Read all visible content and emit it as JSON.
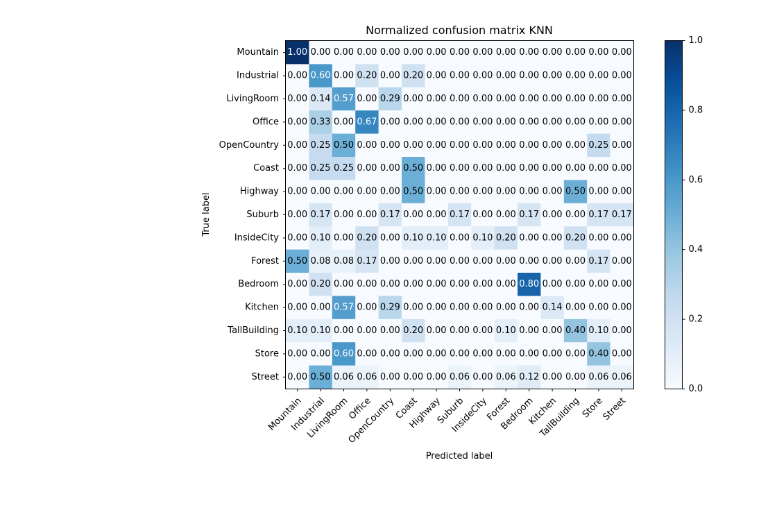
{
  "chart_data": {
    "type": "heatmap",
    "title": "Normalized confusion matrix KNN",
    "xlabel": "Predicted label",
    "ylabel": "True label",
    "x_categories": [
      "Mountain",
      "Industrial",
      "LivingRoom",
      "Office",
      "OpenCountry",
      "Coast",
      "Highway",
      "Suburb",
      "InsideCity",
      "Forest",
      "Bedroom",
      "Kitchen",
      "TallBuilding",
      "Store",
      "Street"
    ],
    "y_categories": [
      "Mountain",
      "Industrial",
      "LivingRoom",
      "Office",
      "OpenCountry",
      "Coast",
      "Highway",
      "Suburb",
      "InsideCity",
      "Forest",
      "Bedroom",
      "Kitchen",
      "TallBuilding",
      "Store",
      "Street"
    ],
    "values": [
      [
        1.0,
        0.0,
        0.0,
        0.0,
        0.0,
        0.0,
        0.0,
        0.0,
        0.0,
        0.0,
        0.0,
        0.0,
        0.0,
        0.0,
        0.0
      ],
      [
        0.0,
        0.6,
        0.0,
        0.2,
        0.0,
        0.2,
        0.0,
        0.0,
        0.0,
        0.0,
        0.0,
        0.0,
        0.0,
        0.0,
        0.0
      ],
      [
        0.0,
        0.14,
        0.57,
        0.0,
        0.29,
        0.0,
        0.0,
        0.0,
        0.0,
        0.0,
        0.0,
        0.0,
        0.0,
        0.0,
        0.0
      ],
      [
        0.0,
        0.33,
        0.0,
        0.67,
        0.0,
        0.0,
        0.0,
        0.0,
        0.0,
        0.0,
        0.0,
        0.0,
        0.0,
        0.0,
        0.0
      ],
      [
        0.0,
        0.25,
        0.5,
        0.0,
        0.0,
        0.0,
        0.0,
        0.0,
        0.0,
        0.0,
        0.0,
        0.0,
        0.0,
        0.25,
        0.0
      ],
      [
        0.0,
        0.25,
        0.25,
        0.0,
        0.0,
        0.5,
        0.0,
        0.0,
        0.0,
        0.0,
        0.0,
        0.0,
        0.0,
        0.0,
        0.0
      ],
      [
        0.0,
        0.0,
        0.0,
        0.0,
        0.0,
        0.5,
        0.0,
        0.0,
        0.0,
        0.0,
        0.0,
        0.0,
        0.5,
        0.0,
        0.0
      ],
      [
        0.0,
        0.17,
        0.0,
        0.0,
        0.17,
        0.0,
        0.0,
        0.17,
        0.0,
        0.0,
        0.17,
        0.0,
        0.0,
        0.17,
        0.17
      ],
      [
        0.0,
        0.1,
        0.0,
        0.2,
        0.0,
        0.1,
        0.1,
        0.0,
        0.1,
        0.2,
        0.0,
        0.0,
        0.2,
        0.0,
        0.0
      ],
      [
        0.5,
        0.08,
        0.08,
        0.17,
        0.0,
        0.0,
        0.0,
        0.0,
        0.0,
        0.0,
        0.0,
        0.0,
        0.0,
        0.17,
        0.0
      ],
      [
        0.0,
        0.2,
        0.0,
        0.0,
        0.0,
        0.0,
        0.0,
        0.0,
        0.0,
        0.0,
        0.8,
        0.0,
        0.0,
        0.0,
        0.0
      ],
      [
        0.0,
        0.0,
        0.57,
        0.0,
        0.29,
        0.0,
        0.0,
        0.0,
        0.0,
        0.0,
        0.0,
        0.14,
        0.0,
        0.0,
        0.0
      ],
      [
        0.1,
        0.1,
        0.0,
        0.0,
        0.0,
        0.2,
        0.0,
        0.0,
        0.0,
        0.1,
        0.0,
        0.0,
        0.4,
        0.1,
        0.0
      ],
      [
        0.0,
        0.0,
        0.6,
        0.0,
        0.0,
        0.0,
        0.0,
        0.0,
        0.0,
        0.0,
        0.0,
        0.0,
        0.0,
        0.4,
        0.0
      ],
      [
        0.0,
        0.5,
        0.06,
        0.06,
        0.0,
        0.0,
        0.0,
        0.06,
        0.0,
        0.06,
        0.12,
        0.0,
        0.0,
        0.06,
        0.06
      ]
    ],
    "value_format": "0.00",
    "colormap": "Blues",
    "colormap_stops": [
      "#f7fbff",
      "#deebf7",
      "#c6dbef",
      "#9ecae1",
      "#6baed6",
      "#4292c6",
      "#2171b5",
      "#08519c",
      "#08306b"
    ],
    "colorbar": {
      "range": [
        0,
        1
      ],
      "tick_values": [
        0.0,
        0.2,
        0.4,
        0.6,
        0.8,
        1.0
      ],
      "tick_labels": [
        "0.0",
        "0.2",
        "0.4",
        "0.6",
        "0.8",
        "1.0"
      ]
    },
    "text_threshold": 0.5,
    "text_color_light": "#ffffff",
    "text_color_dark": "#000000",
    "grid": false
  }
}
